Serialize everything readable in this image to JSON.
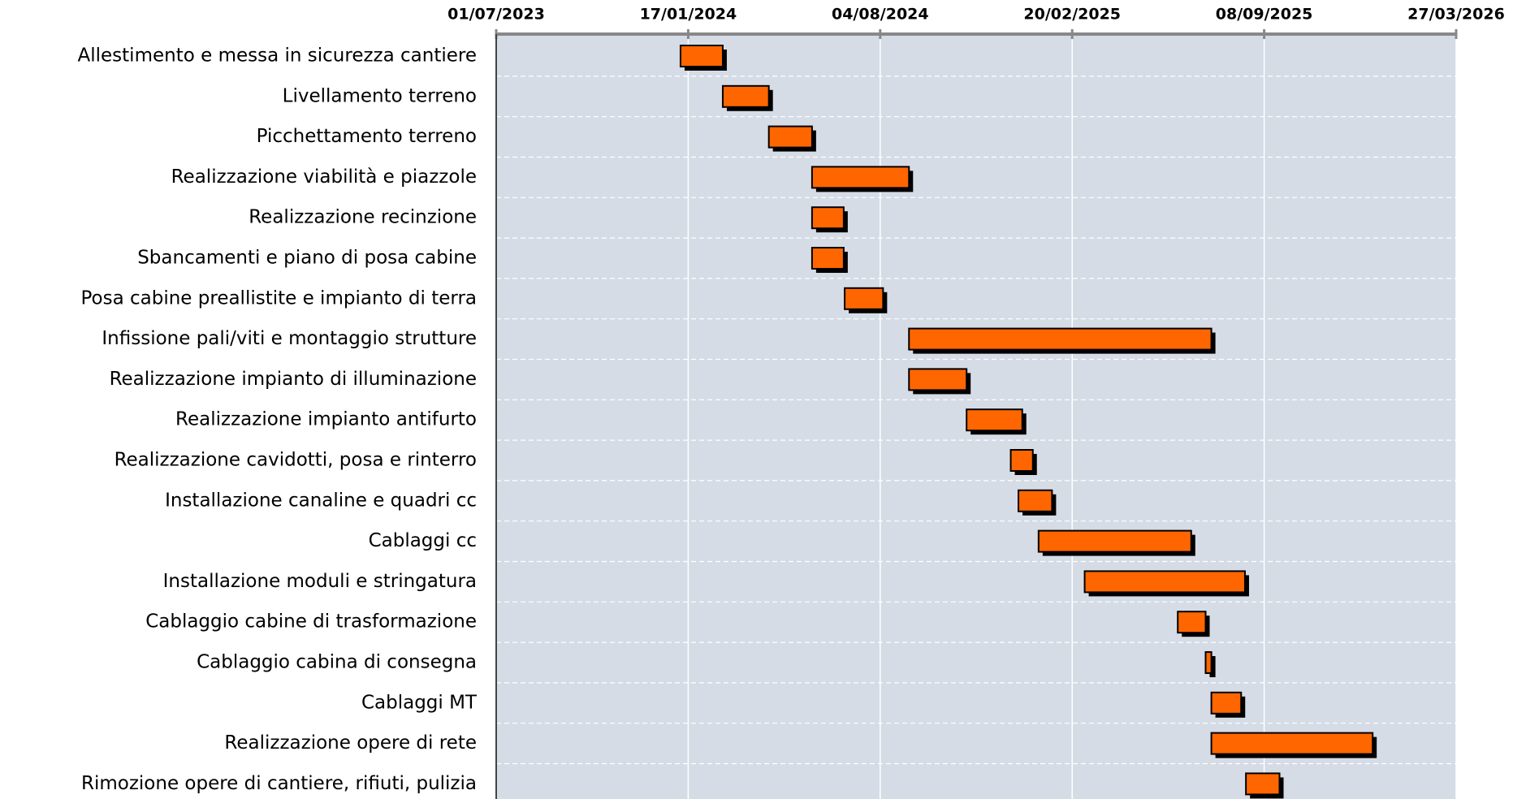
{
  "chart_data": {
    "type": "gantt",
    "color": "#ff6600",
    "grid": true,
    "xlim": [
      "2023-07-01",
      "2026-03-27"
    ],
    "xticks": [
      {
        "value": "2023-07-01",
        "label": "01/07/2023"
      },
      {
        "value": "2024-01-17",
        "label": "17/01/2024"
      },
      {
        "value": "2024-08-04",
        "label": "04/08/2024"
      },
      {
        "value": "2025-02-20",
        "label": "20/02/2025"
      },
      {
        "value": "2025-09-08",
        "label": "08/09/2025"
      },
      {
        "value": "2026-03-27",
        "label": "27/03/2026"
      }
    ],
    "categories": [
      "Allestimento e messa in sicurezza cantiere",
      "Livellamento terreno",
      "Picchettamento terreno",
      "Realizzazione viabilità e piazzole",
      "Realizzazione recinzione",
      "Sbancamenti e piano di posa cabine",
      "Posa cabine preallistite e impianto di terra",
      "Infissione pali/viti e montaggio strutture",
      "Realizzazione impianto di illuminazione",
      "Realizzazione impianto antifurto",
      "Realizzazione cavidotti, posa e rinterro",
      "Installazione canaline e quadri cc",
      "Cablaggi cc",
      "Installazione moduli e stringatura",
      "Cablaggio cabine di trasformazione",
      "Cablaggio cabina di consegna",
      "Cablaggi MT",
      "Realizzazione opere di rete",
      "Rimozione opere di cantiere, rifiuti, pulizia"
    ],
    "start": [
      "2024-01-09",
      "2024-02-22",
      "2024-04-10",
      "2024-05-25",
      "2024-05-25",
      "2024-05-25",
      "2024-06-28",
      "2024-09-03",
      "2024-09-03",
      "2024-11-02",
      "2024-12-18",
      "2024-12-26",
      "2025-01-16",
      "2025-03-05",
      "2025-06-10",
      "2025-07-09",
      "2025-07-15",
      "2025-07-15",
      "2025-08-20"
    ],
    "end": [
      "2024-02-22",
      "2024-04-10",
      "2024-05-25",
      "2024-09-03",
      "2024-06-27",
      "2024-06-27",
      "2024-08-07",
      "2025-07-15",
      "2024-11-02",
      "2024-12-30",
      "2025-01-10",
      "2025-01-30",
      "2025-06-24",
      "2025-08-19",
      "2025-07-09",
      "2025-07-15",
      "2025-08-15",
      "2025-12-30",
      "2025-09-24"
    ]
  }
}
